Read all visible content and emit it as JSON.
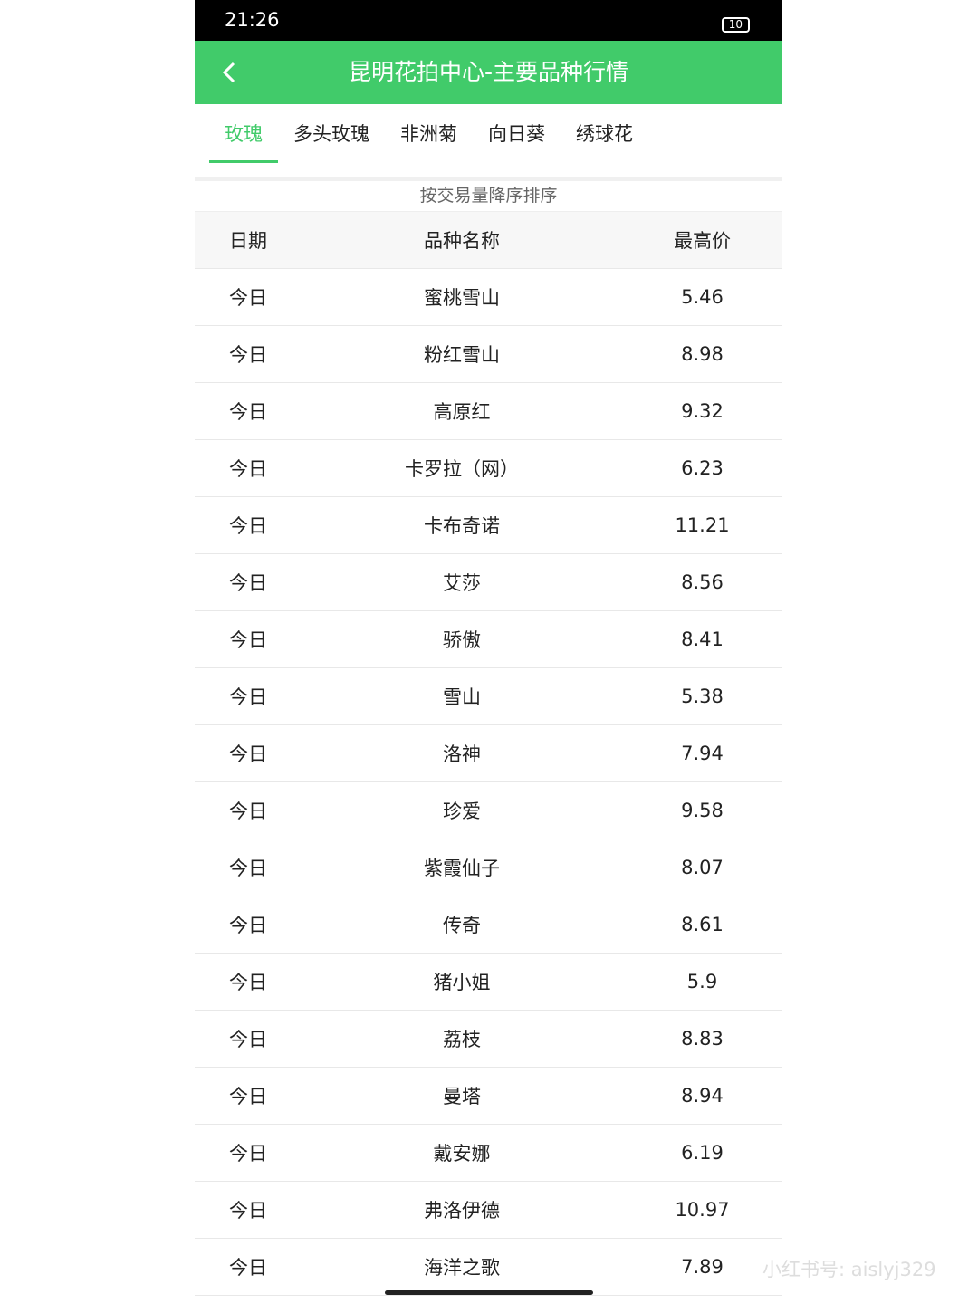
{
  "status_bar": {
    "time": "21:26",
    "battery": "10"
  },
  "header": {
    "title": "昆明花拍中心-主要品种行情"
  },
  "tabs": [
    "玫瑰",
    "多头玫瑰",
    "非洲菊",
    "向日葵",
    "绣球花"
  ],
  "sort_label": "按交易量降序排序",
  "table": {
    "columns": [
      "日期",
      "品种名称",
      "最高价"
    ],
    "rows": [
      [
        "今日",
        "蜜桃雪山",
        "5.46"
      ],
      [
        "今日",
        "粉红雪山",
        "8.98"
      ],
      [
        "今日",
        "高原红",
        "9.32"
      ],
      [
        "今日",
        "卡罗拉（网）",
        "6.23"
      ],
      [
        "今日",
        "卡布奇诺",
        "11.21"
      ],
      [
        "今日",
        "艾莎",
        "8.56"
      ],
      [
        "今日",
        "骄傲",
        "8.41"
      ],
      [
        "今日",
        "雪山",
        "5.38"
      ],
      [
        "今日",
        "洛神",
        "7.94"
      ],
      [
        "今日",
        "珍爱",
        "9.58"
      ],
      [
        "今日",
        "紫霞仙子",
        "8.07"
      ],
      [
        "今日",
        "传奇",
        "8.61"
      ],
      [
        "今日",
        "猪小姐",
        "5.9"
      ],
      [
        "今日",
        "荔枝",
        "8.83"
      ],
      [
        "今日",
        "曼塔",
        "8.94"
      ],
      [
        "今日",
        "戴安娜",
        "6.19"
      ],
      [
        "今日",
        "弗洛伊德",
        "10.97"
      ],
      [
        "今日",
        "海洋之歌",
        "7.89"
      ]
    ]
  },
  "watermark": "小红书号: aislyj329"
}
